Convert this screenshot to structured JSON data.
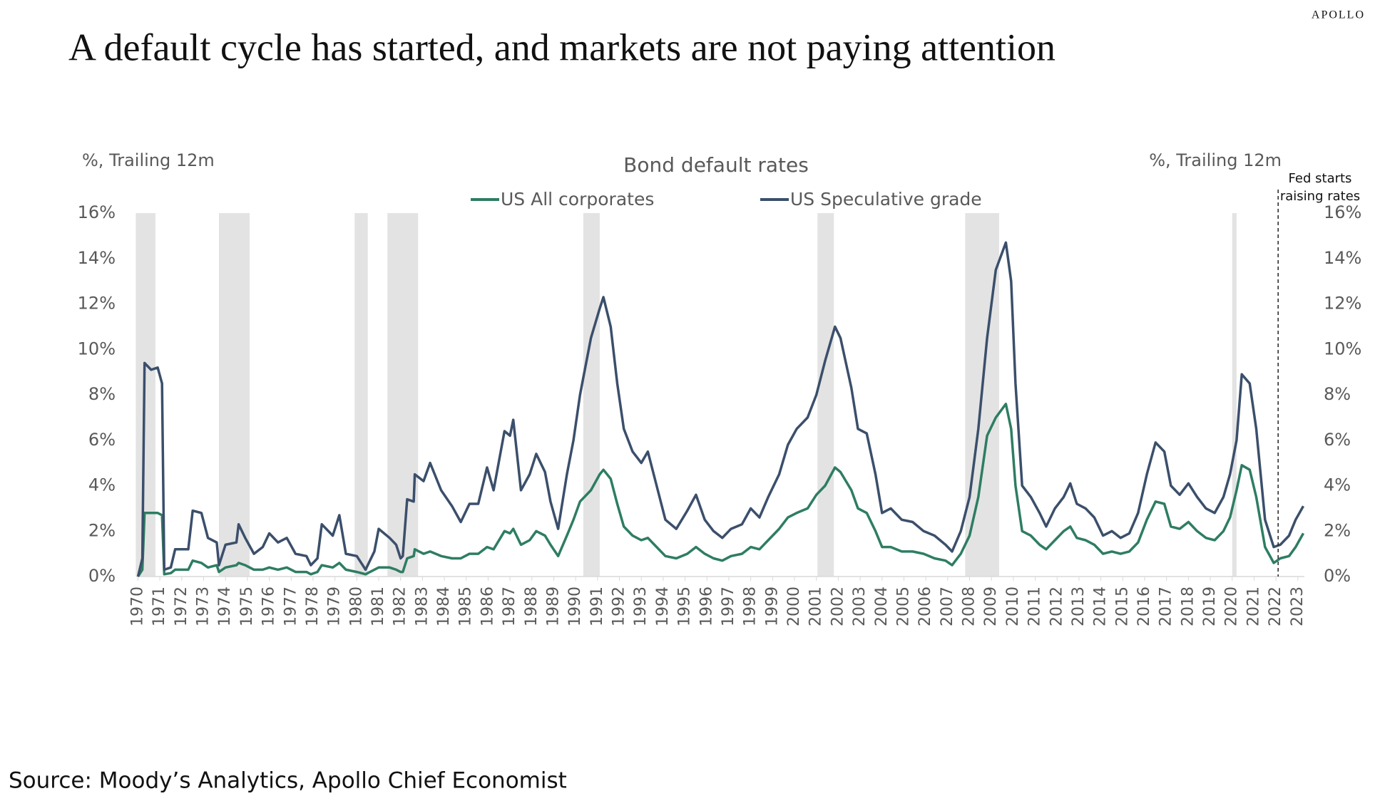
{
  "brand": "APOLLO",
  "headline": "A default cycle has started, and markets are not paying attention",
  "source": "Source: Moody’s Analytics, Apollo Chief Economist",
  "chart_data": {
    "type": "line",
    "title": "Bond default rates",
    "y_label": "%, Trailing 12m",
    "y2_label": "%, Trailing 12m",
    "annotation": {
      "lines": [
        "Fed starts",
        "raising rates"
      ],
      "x": 2022.1
    },
    "recessions": [
      [
        1969.9,
        1970.8
      ],
      [
        1973.7,
        1975.1
      ],
      [
        1979.9,
        1980.5
      ],
      [
        1981.4,
        1982.8
      ],
      [
        1990.35,
        1991.1
      ],
      [
        2001.05,
        2001.8
      ],
      [
        2007.8,
        2009.35
      ],
      [
        2020.0,
        2020.2
      ]
    ],
    "xlim": [
      1969.92,
      2023.3
    ],
    "xticks": [
      1970,
      1971,
      1972,
      1973,
      1974,
      1975,
      1976,
      1977,
      1978,
      1979,
      1980,
      1981,
      1982,
      1983,
      1984,
      1985,
      1986,
      1987,
      1988,
      1989,
      1990,
      1991,
      1992,
      1993,
      1994,
      1995,
      1996,
      1997,
      1998,
      1999,
      2000,
      2001,
      2002,
      2003,
      2004,
      2005,
      2006,
      2007,
      2008,
      2009,
      2010,
      2011,
      2012,
      2013,
      2014,
      2015,
      2016,
      2017,
      2018,
      2019,
      2020,
      2021,
      2022,
      2023
    ],
    "ylim": [
      0,
      16
    ],
    "yticks": [
      {
        "value": 0,
        "label": "0%"
      },
      {
        "value": 2,
        "label": "2%"
      },
      {
        "value": 4,
        "label": "4%"
      },
      {
        "value": 6,
        "label": "6%"
      },
      {
        "value": 8,
        "label": "8%"
      },
      {
        "value": 10,
        "label": "10%"
      },
      {
        "value": 12,
        "label": "12%"
      },
      {
        "value": 14,
        "label": "14%"
      },
      {
        "value": 16,
        "label": "16%"
      }
    ],
    "y2lim": [
      0,
      16
    ],
    "y2ticks": [
      {
        "value": 0,
        "label": "0%"
      },
      {
        "value": 2,
        "label": "2%"
      },
      {
        "value": 4,
        "label": "4%"
      },
      {
        "value": 6,
        "label": "6%"
      },
      {
        "value": 8,
        "label": "8%"
      },
      {
        "value": 10,
        "label": "10%"
      },
      {
        "value": 12,
        "label": "12%"
      },
      {
        "value": 14,
        "label": "14%"
      },
      {
        "value": 16,
        "label": "16%"
      }
    ],
    "x": [
      1970.0,
      1970.2,
      1970.3,
      1970.6,
      1970.9,
      1971.1,
      1971.2,
      1971.5,
      1971.7,
      1972.3,
      1972.5,
      1972.9,
      1973.2,
      1973.6,
      1973.7,
      1974.0,
      1974.5,
      1974.6,
      1974.9,
      1975.3,
      1975.7,
      1976.0,
      1976.4,
      1976.8,
      1977.2,
      1977.7,
      1977.9,
      1978.2,
      1978.4,
      1978.9,
      1979.2,
      1979.5,
      1980.0,
      1980.4,
      1980.8,
      1981.0,
      1981.5,
      1981.8,
      1982.0,
      1982.1,
      1982.3,
      1982.6,
      1982.65,
      1983.05,
      1983.35,
      1983.85,
      1984.35,
      1984.75,
      1985.15,
      1985.55,
      1985.95,
      1986.25,
      1986.75,
      1987.0,
      1987.15,
      1987.5,
      1987.9,
      1988.2,
      1988.6,
      1988.85,
      1989.2,
      1989.6,
      1989.9,
      1990.2,
      1990.7,
      1991.1,
      1991.27,
      1991.6,
      1991.9,
      1992.2,
      1992.6,
      1993.0,
      1993.3,
      1993.7,
      1994.1,
      1994.6,
      1995.1,
      1995.5,
      1995.9,
      1996.3,
      1996.7,
      1997.1,
      1997.6,
      1998.0,
      1998.4,
      1998.8,
      1999.3,
      1999.7,
      2000.1,
      2000.6,
      2001.0,
      2001.4,
      2001.85,
      2002.1,
      2002.6,
      2002.9,
      2003.3,
      2003.7,
      2004.0,
      2004.4,
      2004.9,
      2005.4,
      2005.9,
      2006.4,
      2006.9,
      2007.2,
      2007.6,
      2008.0,
      2008.4,
      2008.8,
      2009.2,
      2009.66,
      2009.9,
      2010.1,
      2010.4,
      2010.8,
      2011.2,
      2011.5,
      2011.9,
      2012.3,
      2012.6,
      2012.9,
      2013.3,
      2013.7,
      2014.1,
      2014.5,
      2014.9,
      2015.3,
      2015.7,
      2016.1,
      2016.5,
      2016.9,
      2017.2,
      2017.6,
      2018.0,
      2018.4,
      2018.8,
      2019.2,
      2019.6,
      2019.9,
      2020.2,
      2020.44,
      2020.8,
      2021.1,
      2021.5,
      2021.9,
      2022.2,
      2022.6,
      2022.9,
      2023.25
    ],
    "series": [
      {
        "name": "US All corporates",
        "color": "#2e7d62",
        "values": [
          0,
          0.3,
          2.8,
          2.8,
          2.8,
          2.7,
          0.1,
          0.15,
          0.3,
          0.3,
          0.7,
          0.6,
          0.4,
          0.5,
          0.2,
          0.4,
          0.5,
          0.6,
          0.5,
          0.3,
          0.3,
          0.4,
          0.3,
          0.4,
          0.2,
          0.2,
          0.1,
          0.2,
          0.5,
          0.4,
          0.6,
          0.3,
          0.2,
          0.1,
          0.3,
          0.4,
          0.4,
          0.3,
          0.2,
          0.2,
          0.8,
          0.9,
          1.2,
          1.0,
          1.1,
          0.9,
          0.8,
          0.8,
          1.0,
          1.0,
          1.3,
          1.2,
          2.0,
          1.9,
          2.1,
          1.4,
          1.6,
          2.0,
          1.8,
          1.4,
          0.9,
          1.8,
          2.5,
          3.3,
          3.8,
          4.5,
          4.7,
          4.3,
          3.2,
          2.2,
          1.8,
          1.6,
          1.7,
          1.3,
          0.9,
          0.8,
          1.0,
          1.3,
          1.0,
          0.8,
          0.7,
          0.9,
          1.0,
          1.3,
          1.2,
          1.6,
          2.1,
          2.6,
          2.8,
          3.0,
          3.6,
          4.0,
          4.8,
          4.6,
          3.8,
          3.0,
          2.8,
          2.0,
          1.3,
          1.3,
          1.1,
          1.1,
          1.0,
          0.8,
          0.7,
          0.5,
          1.0,
          1.8,
          3.5,
          6.2,
          7.0,
          7.6,
          6.5,
          4.0,
          2.0,
          1.8,
          1.4,
          1.2,
          1.6,
          2.0,
          2.2,
          1.7,
          1.6,
          1.4,
          1.0,
          1.1,
          1.0,
          1.1,
          1.5,
          2.5,
          3.3,
          3.2,
          2.2,
          2.1,
          2.4,
          2.0,
          1.7,
          1.6,
          2.0,
          2.6,
          3.8,
          4.9,
          4.7,
          3.5,
          1.3,
          0.6,
          0.8,
          0.9,
          1.3,
          1.9
        ]
      },
      {
        "name": "US Speculative grade",
        "color": "#3b4f6b",
        "values": [
          0,
          0.8,
          9.4,
          9.1,
          9.2,
          8.5,
          0.3,
          0.4,
          1.2,
          1.2,
          2.9,
          2.8,
          1.7,
          1.5,
          0.5,
          1.4,
          1.5,
          2.3,
          1.7,
          1.0,
          1.3,
          1.9,
          1.5,
          1.7,
          1.0,
          0.9,
          0.5,
          0.8,
          2.3,
          1.8,
          2.7,
          1.0,
          0.9,
          0.3,
          1.1,
          2.1,
          1.7,
          1.4,
          0.8,
          0.9,
          3.4,
          3.3,
          4.5,
          4.2,
          5.0,
          3.8,
          3.1,
          2.4,
          3.2,
          3.2,
          4.8,
          3.8,
          6.4,
          6.2,
          6.9,
          3.8,
          4.5,
          5.4,
          4.6,
          3.3,
          2.1,
          4.5,
          6.0,
          8.0,
          10.5,
          11.8,
          12.3,
          11.0,
          8.5,
          6.5,
          5.5,
          5.0,
          5.5,
          4.0,
          2.5,
          2.1,
          2.9,
          3.6,
          2.5,
          2.0,
          1.7,
          2.1,
          2.3,
          3.0,
          2.6,
          3.5,
          4.5,
          5.8,
          6.5,
          7.0,
          8.0,
          9.5,
          11.0,
          10.5,
          8.3,
          6.5,
          6.3,
          4.5,
          2.8,
          3.0,
          2.5,
          2.4,
          2.0,
          1.8,
          1.4,
          1.1,
          2.0,
          3.5,
          6.5,
          10.5,
          13.5,
          14.7,
          13.0,
          8.5,
          4.0,
          3.5,
          2.8,
          2.2,
          3.0,
          3.5,
          4.1,
          3.2,
          3.0,
          2.6,
          1.8,
          2.0,
          1.7,
          1.9,
          2.8,
          4.5,
          5.9,
          5.5,
          4.0,
          3.6,
          4.1,
          3.5,
          3.0,
          2.8,
          3.5,
          4.5,
          6.0,
          8.9,
          8.5,
          6.5,
          2.5,
          1.3,
          1.4,
          1.8,
          2.5,
          3.1
        ]
      }
    ]
  }
}
